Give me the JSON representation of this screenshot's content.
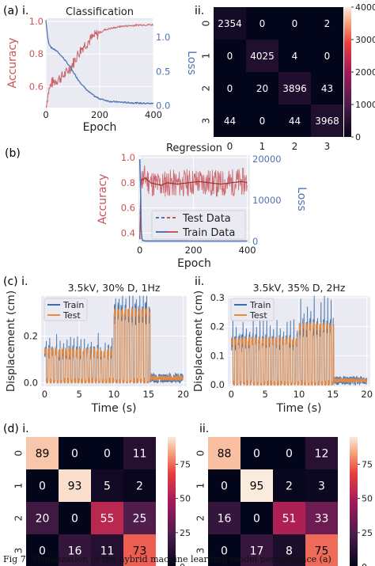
{
  "panel_labels": {
    "a": "(a) i.",
    "a2": "ii.",
    "b": "(b)",
    "c": "(c) i.",
    "c2": "ii.",
    "d": "(d) i.",
    "d2": "ii."
  },
  "caption": "Fig 7. Visualization of the hybrid machine learning model performance (a)",
  "colors": {
    "accuracy": "#c9545a",
    "loss": "#4f73b3",
    "train": "#3b6ea8",
    "test": "#ee8a3a"
  },
  "chart_data": [
    {
      "id": "a1",
      "type": "line",
      "title": "Classification",
      "xlabel": "Epoch",
      "ylabel": "Accuracy",
      "y2label": "Loss",
      "xlim": [
        0,
        400
      ],
      "ylim": [
        0.47,
        1.02
      ],
      "y2lim": [
        -0.03,
        1.28
      ],
      "xticks": [
        0,
        200,
        400
      ],
      "yticks": [
        0.6,
        0.8,
        1.0
      ],
      "y2ticks": [
        0.0,
        0.5,
        1.0
      ],
      "ytick_labels": [
        "0.6",
        "0.8",
        "1.0"
      ],
      "y2tick_labels": [
        "0.0",
        "0.5",
        "1.0"
      ],
      "series": [
        {
          "axis": "left",
          "x": [
            0,
            10,
            20,
            40,
            60,
            80,
            100,
            120,
            140,
            160,
            180,
            200,
            220,
            250,
            280,
            320,
            360,
            400
          ],
          "y": [
            0.48,
            0.57,
            0.62,
            0.64,
            0.66,
            0.69,
            0.74,
            0.8,
            0.85,
            0.88,
            0.91,
            0.93,
            0.95,
            0.96,
            0.97,
            0.975,
            0.98,
            0.98
          ]
        },
        {
          "axis": "right",
          "x": [
            0,
            5,
            10,
            20,
            40,
            60,
            80,
            100,
            120,
            140,
            160,
            180,
            200,
            240,
            280,
            320,
            360,
            400
          ],
          "y": [
            1.25,
            1.05,
            0.92,
            0.85,
            0.8,
            0.72,
            0.62,
            0.5,
            0.38,
            0.28,
            0.2,
            0.14,
            0.1,
            0.06,
            0.05,
            0.04,
            0.035,
            0.03
          ]
        }
      ]
    },
    {
      "id": "a2",
      "type": "heatmap",
      "x_categories": [
        "0",
        "1",
        "2",
        "3"
      ],
      "y_categories": [
        "0",
        "1",
        "2",
        "3"
      ],
      "values": [
        [
          2354,
          0,
          0,
          2
        ],
        [
          0,
          4025,
          4,
          0
        ],
        [
          0,
          20,
          3896,
          43
        ],
        [
          44,
          0,
          44,
          3968
        ]
      ],
      "colorbar_ticks": [
        0,
        10000,
        20000,
        30000,
        40000
      ],
      "colorbar_labels": [
        "0",
        "10000",
        "20000",
        "30000",
        "40000"
      ],
      "vmax": 40000
    },
    {
      "id": "b",
      "type": "line",
      "title": "Regression",
      "xlabel": "Epoch",
      "ylabel": "Accuracy",
      "y2label": "Loss",
      "xlim": [
        -5,
        410
      ],
      "ylim": [
        0.32,
        1.02
      ],
      "y2lim": [
        -400,
        21000
      ],
      "xticks": [
        0,
        200,
        400
      ],
      "yticks": [
        0.4,
        0.6,
        0.8,
        1.0
      ],
      "y2ticks": [
        0,
        10000,
        20000
      ],
      "ytick_labels": [
        "0.4",
        "0.6",
        "0.8",
        "1.0"
      ],
      "y2tick_labels": [
        "0",
        "10000",
        "20000"
      ],
      "legend": [
        "Test Data",
        "Train Data"
      ],
      "legend_position": "lower-right",
      "series": [
        {
          "name": "Test Data",
          "axis": "left",
          "x": [
            0,
            3,
            6,
            10,
            20,
            40,
            60,
            80,
            100,
            140,
            180,
            220,
            260,
            300,
            340,
            380,
            400
          ],
          "y": [
            0.35,
            0.8,
            0.84,
            0.82,
            0.84,
            0.8,
            0.79,
            0.78,
            0.8,
            0.79,
            0.8,
            0.81,
            0.8,
            0.79,
            0.8,
            0.81,
            0.8
          ]
        },
        {
          "name": "Train Data",
          "axis": "right",
          "x": [
            0,
            3,
            5,
            8,
            12,
            20,
            400
          ],
          "y": [
            20000,
            12000,
            3000,
            600,
            200,
            100,
            80
          ]
        }
      ]
    },
    {
      "id": "c1",
      "type": "line",
      "title": "3.5kV, 30% D, 1Hz",
      "xlabel": "Time (s)",
      "ylabel": "Displacement (cm)",
      "xlim": [
        -0.5,
        20.5
      ],
      "ylim": [
        -0.015,
        0.37
      ],
      "xticks": [
        0,
        5,
        10,
        15,
        20
      ],
      "yticks": [
        0.0,
        0.2
      ],
      "ytick_labels": [
        "0.0",
        "0.2"
      ],
      "legend": [
        "Train",
        "Test"
      ],
      "legend_position": "top-left",
      "series": [
        {
          "name": "Train"
        },
        {
          "name": "Test"
        }
      ]
    },
    {
      "id": "c2",
      "type": "line",
      "title": "3.5kV, 35% D, 2Hz",
      "xlabel": "Time (s)",
      "ylabel": "Displacement (cm)",
      "xlim": [
        -0.5,
        20.5
      ],
      "ylim": [
        -0.005,
        0.305
      ],
      "xticks": [
        0,
        5,
        10,
        15,
        20
      ],
      "yticks": [
        0.0,
        0.1,
        0.2,
        0.3
      ],
      "ytick_labels": [
        "0.0",
        "0.1",
        "0.2",
        "0.3"
      ],
      "legend": [
        "Train",
        "Test"
      ],
      "legend_position": "top-left",
      "series": [
        {
          "name": "Train"
        },
        {
          "name": "Test"
        }
      ]
    },
    {
      "id": "d1",
      "type": "heatmap",
      "x_categories": [
        "0",
        "1",
        "2",
        "3"
      ],
      "y_categories": [
        "0",
        "1",
        "2",
        "3"
      ],
      "values": [
        [
          89,
          0,
          0,
          11
        ],
        [
          0,
          93,
          5,
          2
        ],
        [
          20,
          0,
          55,
          25
        ],
        [
          0,
          16,
          11,
          73
        ]
      ],
      "colorbar_ticks": [
        0,
        25,
        50,
        75
      ],
      "colorbar_labels": [
        "0",
        "25",
        "50",
        "75"
      ],
      "vmax": 95
    },
    {
      "id": "d2",
      "type": "heatmap",
      "x_categories": [
        "0",
        "1",
        "2",
        "3"
      ],
      "y_categories": [
        "0",
        "1",
        "2",
        "3"
      ],
      "values": [
        [
          88,
          0,
          0,
          12
        ],
        [
          0,
          95,
          2,
          3
        ],
        [
          16,
          0,
          51,
          33
        ],
        [
          0,
          17,
          8,
          75
        ]
      ],
      "colorbar_ticks": [
        0,
        25,
        50,
        75
      ],
      "colorbar_labels": [
        "0",
        "25",
        "50",
        "75"
      ],
      "vmax": 95
    }
  ]
}
